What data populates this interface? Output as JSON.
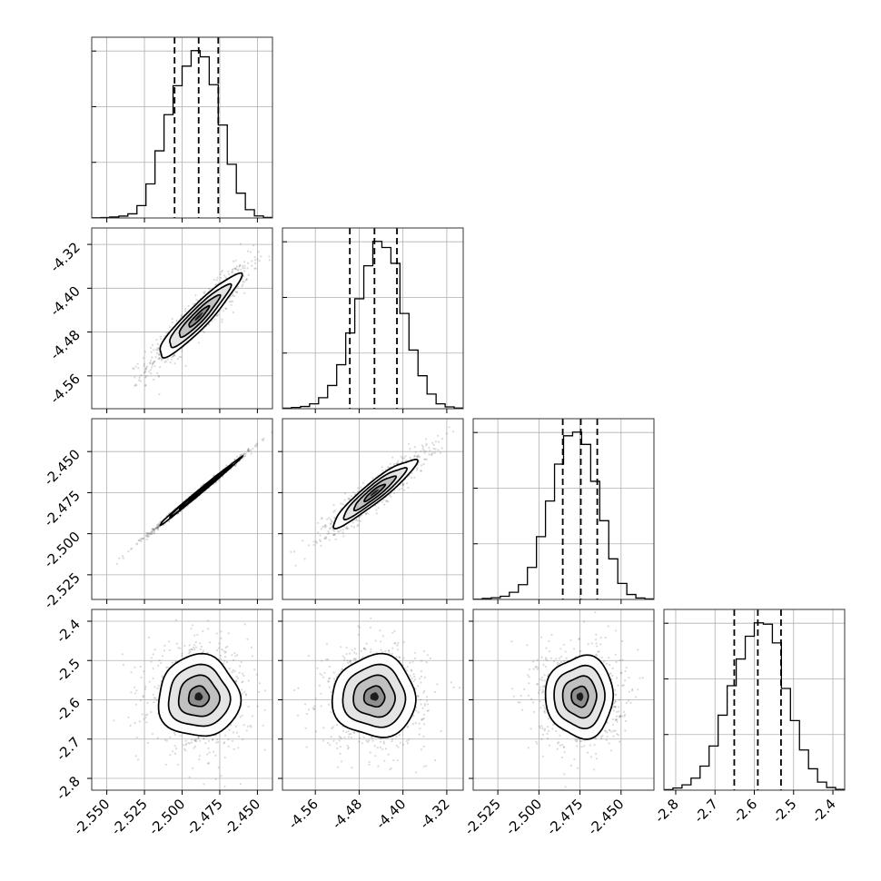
{
  "chart_data": {
    "type": "corner",
    "parameters": 4,
    "marginals": [
      {
        "axis": 0,
        "range": [
          -2.56,
          -2.44
        ],
        "quantiles": [
          -2.505,
          -2.489,
          -2.476
        ],
        "bin_edges": [
          -2.56,
          -2.554,
          -2.548,
          -2.542,
          -2.536,
          -2.53,
          -2.524,
          -2.518,
          -2.512,
          -2.506,
          -2.5,
          -2.494,
          -2.488,
          -2.482,
          -2.476,
          -2.47,
          -2.464,
          -2.458,
          -2.452,
          -2.446,
          -2.44
        ],
        "counts": [
          2,
          4,
          10,
          18,
          40,
          120,
          330,
          650,
          1000,
          1280,
          1470,
          1620,
          1560,
          1290,
          900,
          520,
          240,
          80,
          20,
          5
        ]
      },
      {
        "axis": 1,
        "range": [
          -4.62,
          -4.29
        ],
        "quantiles": [
          -4.497,
          -4.452,
          -4.411
        ],
        "bin_edges": [
          -4.62,
          -4.6035,
          -4.587,
          -4.5705,
          -4.554,
          -4.5375,
          -4.521,
          -4.5045,
          -4.488,
          -4.4715,
          -4.455,
          -4.4385,
          -4.422,
          -4.4055,
          -4.389,
          -4.3725,
          -4.356,
          -4.3395,
          -4.323,
          -4.3065,
          -4.29
        ],
        "counts": [
          4,
          10,
          18,
          40,
          90,
          190,
          360,
          620,
          900,
          1170,
          1370,
          1320,
          1190,
          780,
          480,
          270,
          120,
          40,
          15,
          5
        ]
      },
      {
        "axis": 2,
        "range": [
          -2.54,
          -2.43
        ],
        "quantiles": [
          -2.4855,
          -2.4745,
          -2.4645
        ],
        "bin_edges": [
          -2.54,
          -2.5345,
          -2.529,
          -2.5235,
          -2.518,
          -2.5125,
          -2.507,
          -2.5015,
          -2.496,
          -2.4905,
          -2.485,
          -2.4795,
          -2.474,
          -2.4685,
          -2.463,
          -2.4575,
          -2.452,
          -2.4465,
          -2.441,
          -2.4355,
          -2.43
        ],
        "counts": [
          2,
          8,
          14,
          26,
          58,
          120,
          260,
          510,
          800,
          1100,
          1330,
          1360,
          1260,
          960,
          640,
          330,
          130,
          40,
          12,
          4
        ]
      },
      {
        "axis": 3,
        "range": [
          -2.83,
          -2.37
        ],
        "quantiles": [
          -2.651,
          -2.591,
          -2.532
        ],
        "bin_edges": [
          -2.83,
          -2.807,
          -2.784,
          -2.761,
          -2.738,
          -2.715,
          -2.692,
          -2.669,
          -2.646,
          -2.623,
          -2.6,
          -2.577,
          -2.554,
          -2.531,
          -2.508,
          -2.485,
          -2.462,
          -2.439,
          -2.416,
          -2.393,
          -2.37
        ],
        "counts": [
          4,
          16,
          40,
          90,
          180,
          330,
          560,
          780,
          980,
          1150,
          1250,
          1240,
          1100,
          760,
          520,
          300,
          160,
          60,
          20,
          6
        ]
      }
    ],
    "pairs": [
      {
        "x_axis": 0,
        "y_axis": 1,
        "mean": [
          -2.489,
          -4.452
        ],
        "std": [
          0.0135,
          0.038
        ],
        "rho": 0.93
      },
      {
        "x_axis": 0,
        "y_axis": 2,
        "mean": [
          -2.489,
          -2.475
        ],
        "std": [
          0.0135,
          0.0103
        ],
        "rho": 0.997
      },
      {
        "x_axis": 1,
        "y_axis": 2,
        "mean": [
          -4.452,
          -2.475
        ],
        "std": [
          0.038,
          0.0103
        ],
        "rho": 0.93
      },
      {
        "x_axis": 0,
        "y_axis": 3,
        "mean": [
          -2.489,
          -2.592
        ],
        "std": [
          0.0135,
          0.052
        ],
        "rho": 0.0
      },
      {
        "x_axis": 1,
        "y_axis": 3,
        "mean": [
          -4.452,
          -2.592
        ],
        "std": [
          0.038,
          0.052
        ],
        "rho": 0.0
      },
      {
        "x_axis": 2,
        "y_axis": 3,
        "mean": [
          -2.475,
          -2.592
        ],
        "std": [
          0.0103,
          0.052
        ],
        "rho": 0.0
      }
    ],
    "contour_levels_sigma": [
      0.5,
      1.0,
      1.5,
      2.0
    ],
    "x_ticks": [
      [
        "-2.550",
        "-2.525",
        "-2.500",
        "-2.475",
        "-2.450"
      ],
      [
        "-4.56",
        "-4.48",
        "-4.40",
        "-4.32"
      ],
      [
        "-2.525",
        "-2.500",
        "-2.475",
        "-2.450"
      ],
      [
        "-2.8",
        "-2.7",
        "-2.6",
        "-2.5",
        "-2.4"
      ]
    ],
    "x_tick_values": [
      [
        -2.55,
        -2.525,
        -2.5,
        -2.475,
        -2.45
      ],
      [
        -4.56,
        -4.48,
        -4.4,
        -4.32
      ],
      [
        -2.525,
        -2.5,
        -2.475,
        -2.45
      ],
      [
        -2.8,
        -2.7,
        -2.6,
        -2.5,
        -2.4
      ]
    ],
    "y_ticks": [
      [],
      [
        "-4.32",
        "-4.40",
        "-4.48",
        "-4.56"
      ],
      [
        "-2.450",
        "-2.475",
        "-2.500",
        "-2.525"
      ],
      [
        "-2.4",
        "-2.5",
        "-2.6",
        "-2.7",
        "-2.8"
      ]
    ],
    "y_tick_values": [
      [],
      [
        -4.32,
        -4.4,
        -4.48,
        -4.56
      ],
      [
        -2.45,
        -2.475,
        -2.5,
        -2.525
      ],
      [
        -2.4,
        -2.5,
        -2.6,
        -2.7,
        -2.8
      ]
    ],
    "grid": true,
    "colors": {
      "line": "#000000",
      "grid": "#b0b0b0",
      "points": "#555555"
    }
  }
}
